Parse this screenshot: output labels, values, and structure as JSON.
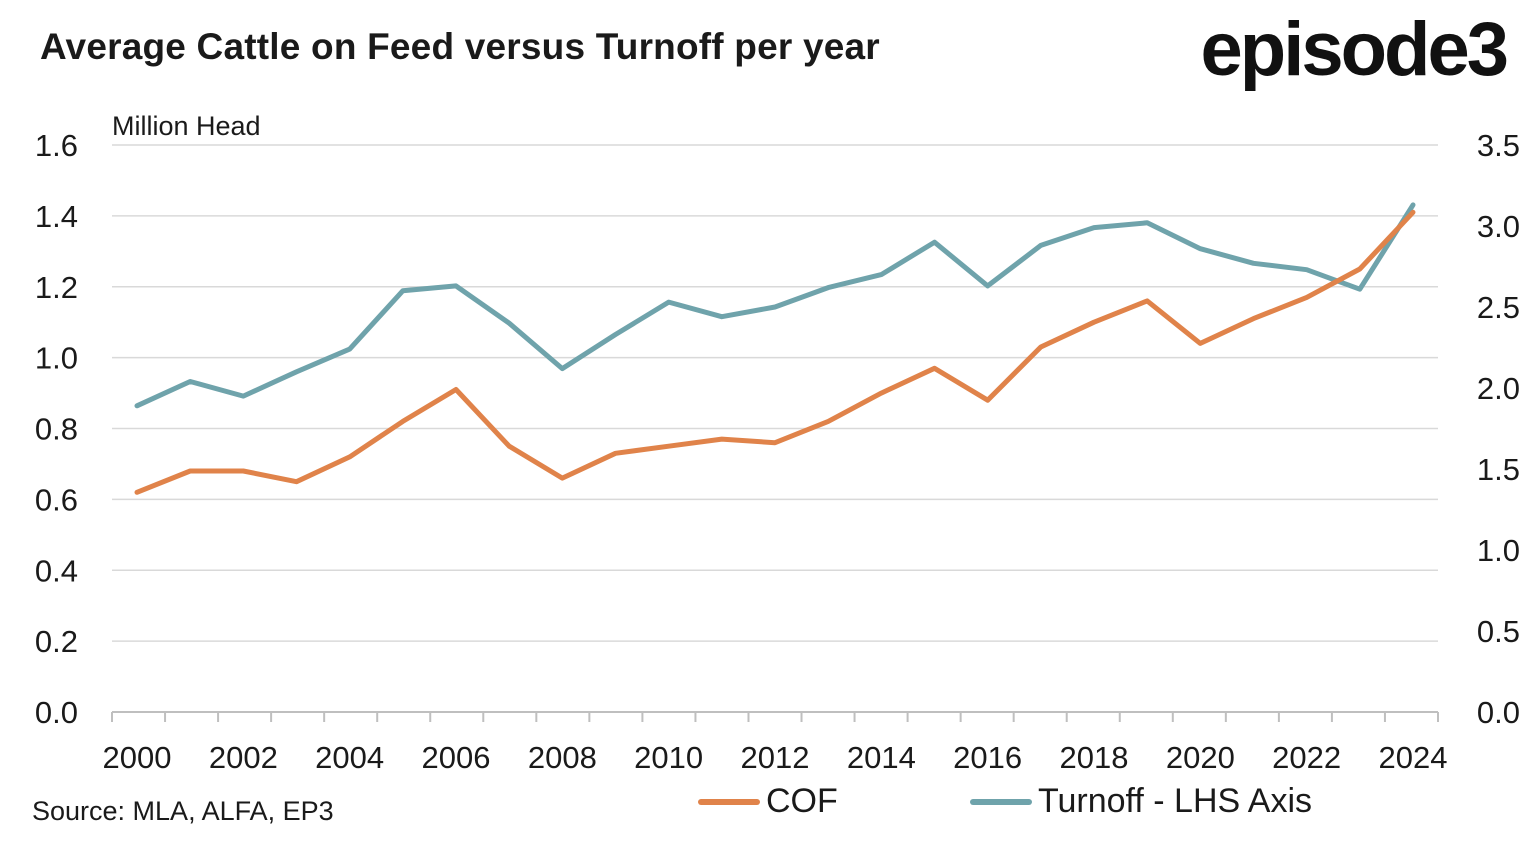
{
  "title": "Average Cattle on Feed versus Turnoff per year",
  "logo_text": "episode3",
  "source": "Source: MLA, ALFA, EP3",
  "chart_data": {
    "type": "line",
    "unit_label": "Million Head",
    "x": [
      2000,
      2001,
      2002,
      2003,
      2004,
      2005,
      2006,
      2007,
      2008,
      2009,
      2010,
      2011,
      2012,
      2013,
      2014,
      2015,
      2016,
      2017,
      2018,
      2019,
      2020,
      2021,
      2022,
      2023,
      2024
    ],
    "x_tick_labels": [
      "2000",
      "2002",
      "2004",
      "2006",
      "2008",
      "2010",
      "2012",
      "2014",
      "2016",
      "2018",
      "2020",
      "2022",
      "2024"
    ],
    "left_axis": {
      "range": [
        0,
        1.6
      ],
      "ticks": [
        "0.0",
        "0.2",
        "0.4",
        "0.6",
        "0.8",
        "1.0",
        "1.2",
        "1.4",
        "1.6"
      ]
    },
    "right_axis": {
      "range": [
        0,
        3.5
      ],
      "ticks": [
        "0.0",
        "0.5",
        "1.0",
        "1.5",
        "2.0",
        "2.5",
        "3.0",
        "3.5"
      ]
    },
    "grid": true,
    "legend_position": "bottom",
    "series": [
      {
        "name": "COF",
        "axis": "left",
        "color": "#E0834A",
        "values": [
          0.62,
          0.68,
          0.68,
          0.65,
          0.72,
          0.82,
          0.91,
          0.75,
          0.66,
          0.73,
          0.75,
          0.77,
          0.76,
          0.82,
          0.9,
          0.97,
          0.88,
          1.03,
          1.1,
          1.16,
          1.04,
          1.11,
          1.17,
          1.25,
          1.41
        ]
      },
      {
        "name": "Turnoff - LHS Axis",
        "axis": "right",
        "color": "#6FA3AB",
        "values": [
          1.89,
          2.04,
          1.95,
          2.1,
          2.24,
          2.6,
          2.63,
          2.4,
          2.12,
          2.33,
          2.53,
          2.44,
          2.5,
          2.62,
          2.7,
          2.9,
          2.63,
          2.88,
          2.99,
          3.02,
          2.86,
          2.77,
          2.73,
          2.61,
          3.13
        ]
      }
    ]
  }
}
